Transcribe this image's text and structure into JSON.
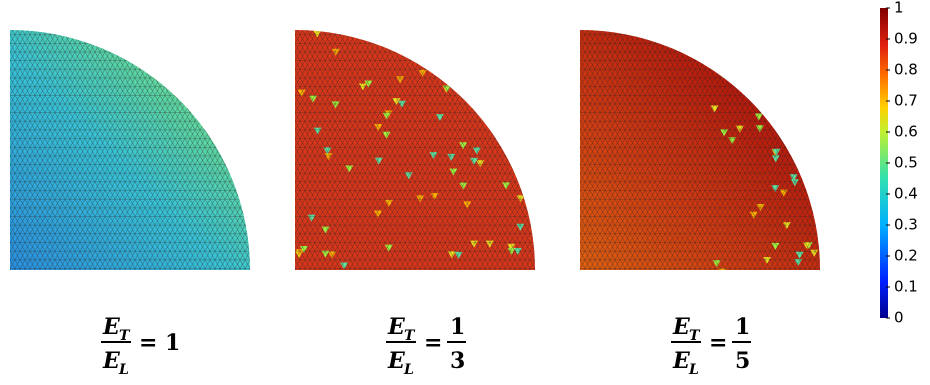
{
  "colorbar": {
    "range": [
      0,
      1
    ],
    "ticks": [
      0,
      0.1,
      0.2,
      0.3,
      0.4,
      0.5,
      0.6,
      0.7,
      0.8,
      0.9,
      1
    ]
  },
  "panels": [
    {
      "num": [
        "E",
        "T"
      ],
      "den": [
        "E",
        "L"
      ],
      "relation": "=",
      "rhs": "1"
    },
    {
      "num": [
        "E",
        "T"
      ],
      "den": [
        "E",
        "L"
      ],
      "relation": "=",
      "rhs_num": "1",
      "rhs_den": "3"
    },
    {
      "num": [
        "E",
        "T"
      ],
      "den": [
        "E",
        "L"
      ],
      "relation": "=",
      "rhs_num": "1",
      "rhs_den": "5"
    }
  ]
}
